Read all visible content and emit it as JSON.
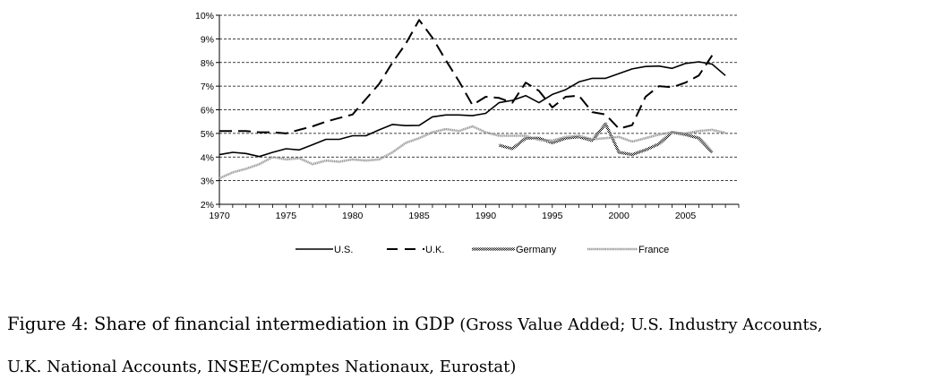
{
  "chart_data": {
    "type": "line",
    "title": "",
    "xlabel": "",
    "ylabel": "",
    "ylim": [
      0.02,
      0.1
    ],
    "xlim": [
      1970,
      2009
    ],
    "y_ticks": [
      0.02,
      0.03,
      0.04,
      0.05,
      0.06,
      0.07,
      0.08,
      0.09,
      0.1
    ],
    "y_tick_labels": [
      "2%",
      "3%",
      "4%",
      "5%",
      "6%",
      "7%",
      "8%",
      "9%",
      "10%"
    ],
    "x_ticks": [
      1970,
      1975,
      1980,
      1985,
      1990,
      1995,
      2000,
      2005
    ],
    "x_tick_labels": [
      "1970",
      "1975",
      "1980",
      "1985",
      "1990",
      "1995",
      "2000",
      "2005"
    ],
    "grid": "horizontal dashed",
    "legend_position": "bottom",
    "series": [
      {
        "name": "U.S.",
        "style": "solid",
        "color": "#000000",
        "x": [
          1970,
          1971,
          1972,
          1973,
          1974,
          1975,
          1976,
          1977,
          1978,
          1979,
          1980,
          1981,
          1982,
          1983,
          1984,
          1985,
          1986,
          1987,
          1988,
          1989,
          1990,
          1991,
          1992,
          1993,
          1994,
          1995,
          1996,
          1997,
          1998,
          1999,
          2000,
          2001,
          2002,
          2003,
          2004,
          2005,
          2006,
          2007,
          2008
        ],
        "values": [
          0.041,
          0.042,
          0.0415,
          0.0402,
          0.042,
          0.0435,
          0.043,
          0.0452,
          0.0475,
          0.0475,
          0.049,
          0.049,
          0.0515,
          0.0538,
          0.0533,
          0.0534,
          0.057,
          0.0578,
          0.0578,
          0.0575,
          0.0585,
          0.063,
          0.064,
          0.066,
          0.063,
          0.0665,
          0.0685,
          0.0718,
          0.0733,
          0.0733,
          0.0753,
          0.0773,
          0.0783,
          0.0785,
          0.0775,
          0.0796,
          0.0803,
          0.0793,
          0.0745
        ]
      },
      {
        "name": "U.K.",
        "style": "dashed",
        "color": "#000000",
        "x": [
          1970,
          1971,
          1972,
          1973,
          1974,
          1975,
          1976,
          1977,
          1978,
          1979,
          1980,
          1981,
          1982,
          1983,
          1984,
          1985,
          1986,
          1987,
          1988,
          1989,
          1990,
          1991,
          1992,
          1993,
          1994,
          1995,
          1996,
          1997,
          1998,
          1999,
          2000,
          2001,
          2002,
          2003,
          2004,
          2005,
          2006,
          2007
        ],
        "values": [
          0.051,
          0.051,
          0.051,
          0.0505,
          0.0505,
          0.05,
          0.0515,
          0.053,
          0.055,
          0.0565,
          0.058,
          0.0645,
          0.071,
          0.08,
          0.088,
          0.098,
          0.0905,
          0.081,
          0.072,
          0.062,
          0.0655,
          0.065,
          0.063,
          0.0715,
          0.068,
          0.061,
          0.0655,
          0.066,
          0.059,
          0.058,
          0.052,
          0.0535,
          0.0655,
          0.07,
          0.0695,
          0.0715,
          0.0745,
          0.083
        ]
      },
      {
        "name": "Germany",
        "style": "checkered",
        "color": "#333333",
        "x": [
          1991,
          1992,
          1993,
          1994,
          1995,
          1996,
          1997,
          1998,
          1999,
          2000,
          2001,
          2002,
          2003,
          2004,
          2005,
          2006,
          2007
        ],
        "values": [
          0.045,
          0.0435,
          0.048,
          0.048,
          0.046,
          0.048,
          0.0485,
          0.047,
          0.054,
          0.042,
          0.041,
          0.043,
          0.0455,
          0.0505,
          0.0495,
          0.048,
          0.042
        ]
      },
      {
        "name": "France",
        "style": "dotted-grey",
        "color": "#8c8c8c",
        "x": [
          1970,
          1971,
          1972,
          1973,
          1974,
          1975,
          1976,
          1977,
          1978,
          1979,
          1980,
          1981,
          1982,
          1983,
          1984,
          1985,
          1986,
          1987,
          1988,
          1989,
          1990,
          1991,
          1992,
          1993,
          1994,
          1995,
          1996,
          1997,
          1998,
          1999,
          2000,
          2001,
          2002,
          2003,
          2004,
          2005,
          2006,
          2007,
          2008
        ],
        "values": [
          0.031,
          0.0335,
          0.035,
          0.037,
          0.04,
          0.039,
          0.0395,
          0.037,
          0.0385,
          0.038,
          0.039,
          0.0385,
          0.039,
          0.042,
          0.046,
          0.048,
          0.0505,
          0.0518,
          0.051,
          0.053,
          0.0505,
          0.049,
          0.049,
          0.049,
          0.0472,
          0.047,
          0.0485,
          0.049,
          0.0475,
          0.048,
          0.0485,
          0.0465,
          0.048,
          0.0495,
          0.0505,
          0.05,
          0.051,
          0.0515,
          0.0502
        ]
      }
    ]
  },
  "caption": {
    "line1_main": "Figure 4: Share of financial intermediation in GDP",
    "line1_paren": " (Gross Value Added; U.S. Industry Accounts,",
    "line2": "U.K. National Accounts, INSEE/Comptes Nationaux, Eurostat)"
  }
}
